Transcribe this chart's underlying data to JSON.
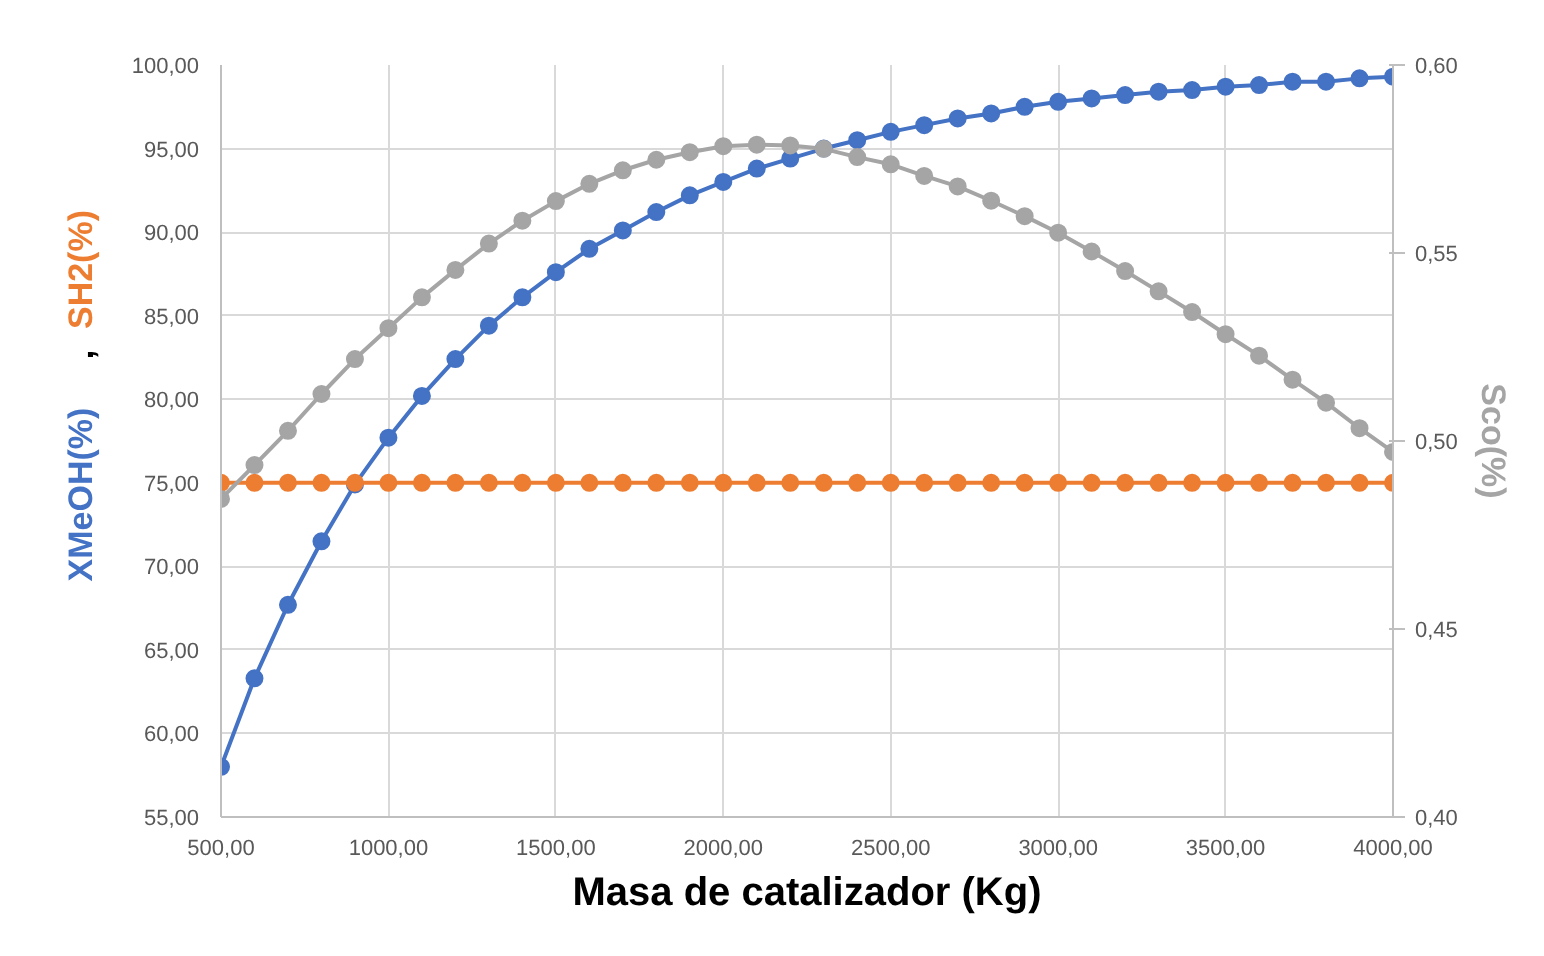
{
  "chart_data": {
    "type": "line",
    "xlabel": "Masa de catalizador (Kg)",
    "ylabel": "XMeOH(%) , SH2(%)",
    "y2label": "Sco(%)",
    "x": [
      500,
      600,
      700,
      800,
      900,
      1000,
      1100,
      1200,
      1300,
      1400,
      1500,
      1600,
      1700,
      1800,
      1900,
      2000,
      2100,
      2200,
      2300,
      2400,
      2500,
      2600,
      2700,
      2800,
      2900,
      3000,
      3100,
      3200,
      3300,
      3400,
      3500,
      3600,
      3700,
      3800,
      3900,
      4000
    ],
    "series": [
      {
        "color": "#4472c4",
        "values": [
          58.0,
          63.3,
          67.7,
          71.5,
          74.9,
          77.7,
          80.2,
          82.4,
          84.4,
          86.1,
          87.6,
          89.0,
          90.1,
          91.2,
          92.2,
          93.0,
          93.8,
          94.4,
          95.0,
          95.5,
          96.0,
          96.4,
          96.8,
          97.1,
          97.5,
          97.8,
          98.0,
          98.2,
          98.4,
          98.5,
          98.7,
          98.8,
          99.0,
          99.0,
          99.2,
          99.3
        ]
      },
      {
        "color": "#ed7d31",
        "values": [
          75.0,
          75.0,
          75.0,
          75.0,
          75.0,
          75.0,
          75.0,
          75.0,
          75.0,
          75.0,
          75.0,
          75.0,
          75.0,
          75.0,
          75.0,
          75.0,
          75.0,
          75.0,
          75.0,
          75.0,
          75.0,
          75.0,
          75.0,
          75.0,
          75.0,
          75.0,
          75.0,
          75.0,
          75.0,
          75.0,
          75.0,
          75.0,
          75.0,
          75.0,
          75.0,
          75.0
        ]
      },
      {
        "color": "#a5a5a5",
        "axis": "y2",
        "values": [
          0.4846,
          0.4936,
          0.5027,
          0.5125,
          0.5218,
          0.53,
          0.5382,
          0.5455,
          0.5525,
          0.5586,
          0.5638,
          0.5684,
          0.572,
          0.5748,
          0.5768,
          0.5784,
          0.5788,
          0.5786,
          0.5777,
          0.5755,
          0.5736,
          0.5705,
          0.5677,
          0.5639,
          0.5598,
          0.5554,
          0.5504,
          0.5452,
          0.5398,
          0.5343,
          0.5284,
          0.5227,
          0.5163,
          0.5102,
          0.5034,
          0.4971
        ]
      }
    ],
    "xlim": [
      500,
      4000
    ],
    "xticks": [
      {
        "value": 500,
        "label": "500,00"
      },
      {
        "value": 1000,
        "label": "1000,00"
      },
      {
        "value": 1500,
        "label": "1500,00"
      },
      {
        "value": 2000,
        "label": "2000,00"
      },
      {
        "value": 2500,
        "label": "2500,00"
      },
      {
        "value": 3000,
        "label": "3000,00"
      },
      {
        "value": 3500,
        "label": "3500,00"
      },
      {
        "value": 4000,
        "label": "4000,00"
      }
    ],
    "ylim": [
      55,
      100
    ],
    "yticks": [
      {
        "value": 55,
        "label": "55,00"
      },
      {
        "value": 60,
        "label": "60,00"
      },
      {
        "value": 65,
        "label": "65,00"
      },
      {
        "value": 70,
        "label": "70,00"
      },
      {
        "value": 75,
        "label": "75,00"
      },
      {
        "value": 80,
        "label": "80,00"
      },
      {
        "value": 85,
        "label": "85,00"
      },
      {
        "value": 90,
        "label": "90,00"
      },
      {
        "value": 95,
        "label": "95,00"
      },
      {
        "value": 100,
        "label": "100,00"
      }
    ],
    "y2lim": [
      0.4,
      0.6
    ],
    "y2ticks": [
      {
        "value": 0.4,
        "label": "0,40"
      },
      {
        "value": 0.45,
        "label": "0,45"
      },
      {
        "value": 0.5,
        "label": "0,50"
      },
      {
        "value": 0.55,
        "label": "0,55"
      },
      {
        "value": 0.6,
        "label": "0,60"
      }
    ],
    "grid": true,
    "marker": "circle",
    "line_style": "solid"
  }
}
